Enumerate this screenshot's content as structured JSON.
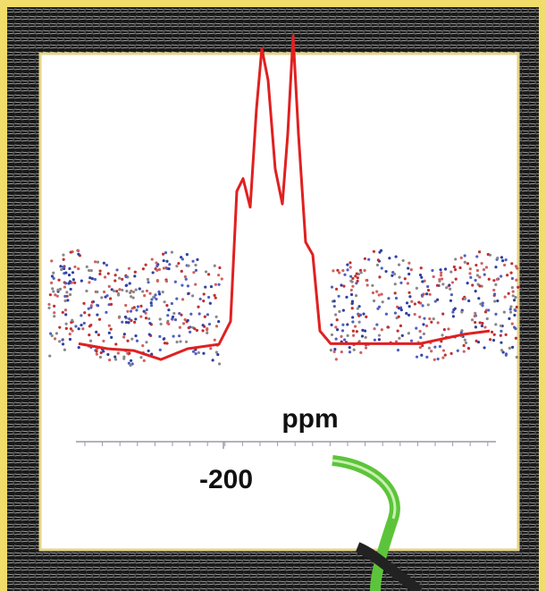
{
  "chart_data": {
    "type": "line",
    "x_label": "ppm",
    "x": [
      -281,
      -265,
      -250,
      -235,
      -220,
      -202.5,
      -196,
      -192.5,
      -189,
      -185,
      -181.5,
      -178.5,
      -175,
      -171,
      -167,
      -164,
      -161,
      -158,
      -154,
      -150,
      -146,
      -140,
      -115,
      -90,
      -65,
      -51
    ],
    "series": [
      {
        "color": "#e02020",
        "values": [
          3,
          1.4,
          0.8,
          -2,
          1.4,
          2.8,
          10,
          51,
          55,
          46,
          77,
          96,
          86,
          58,
          47,
          69,
          100,
          69,
          35,
          31,
          7,
          3,
          3,
          3,
          6,
          7
        ]
      }
    ],
    "xlim": [
      -282.5,
      -47.5
    ],
    "xticks": [
      -200
    ],
    "ylim": [
      -5,
      100
    ]
  }
}
